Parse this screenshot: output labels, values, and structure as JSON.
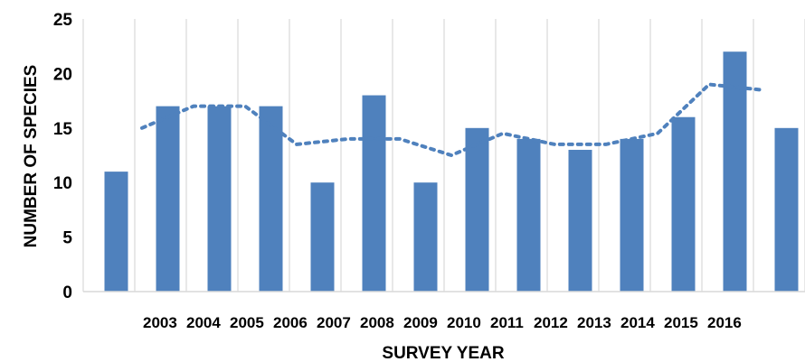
{
  "chart_data": {
    "type": "bar",
    "title": "",
    "xlabel": "SURVEY YEAR",
    "ylabel": "NUMBER OF SPECIES",
    "ylim": [
      0,
      25
    ],
    "yticks": [
      "0",
      "5",
      "10",
      "15",
      "20",
      "25"
    ],
    "x_tick_labels": [
      "2003",
      "2004",
      "2005",
      "2006",
      "2007",
      "2008",
      "2009",
      "2010",
      "2011",
      "2012",
      "2013",
      "2014",
      "2015",
      "2016"
    ],
    "values": [
      11,
      17,
      17,
      17,
      10,
      18,
      10,
      15,
      14,
      13,
      14,
      16,
      22,
      15
    ],
    "trendline": {
      "style": "dotted",
      "values": [
        null,
        15,
        17,
        17,
        13.5,
        14,
        14,
        12.5,
        14.5,
        13.5,
        13.5,
        14.5,
        19,
        18.5
      ]
    },
    "grid": "vertical",
    "bar_color": "#4f81bd",
    "trend_color": "#4f81bd"
  }
}
